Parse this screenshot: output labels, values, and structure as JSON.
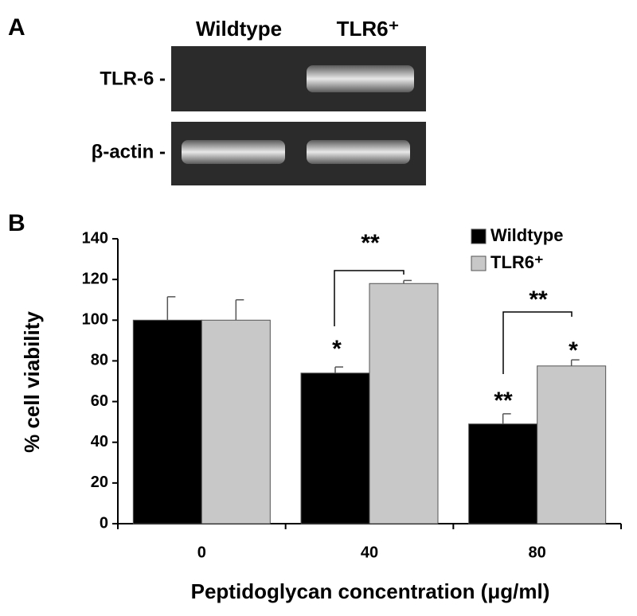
{
  "panel_a": {
    "label": "A",
    "columns": [
      "Wildtype",
      "TLR6⁺"
    ],
    "rows": [
      "TLR-6 -",
      "β-actin -"
    ]
  },
  "chart_data": {
    "type": "bar",
    "panel_label": "B",
    "xlabel": "Peptidoglycan concentration (μg/ml)",
    "ylabel": "% cell viability",
    "categories": [
      "0",
      "40",
      "80"
    ],
    "series": [
      {
        "name": "Wildtype",
        "color": "#000000",
        "values": [
          100,
          74,
          49
        ],
        "errors": [
          11.5,
          3,
          5
        ]
      },
      {
        "name": "TLR6⁺",
        "color": "#c8c8c8",
        "values": [
          100,
          118,
          77.5
        ],
        "errors": [
          10,
          1.5,
          3
        ]
      }
    ],
    "ylim": [
      0,
      140
    ],
    "yticks": [
      0,
      20,
      40,
      60,
      80,
      100,
      120,
      140
    ],
    "legend": "upper right",
    "annotations": [
      "*",
      "**",
      "**",
      "*",
      "**"
    ]
  }
}
